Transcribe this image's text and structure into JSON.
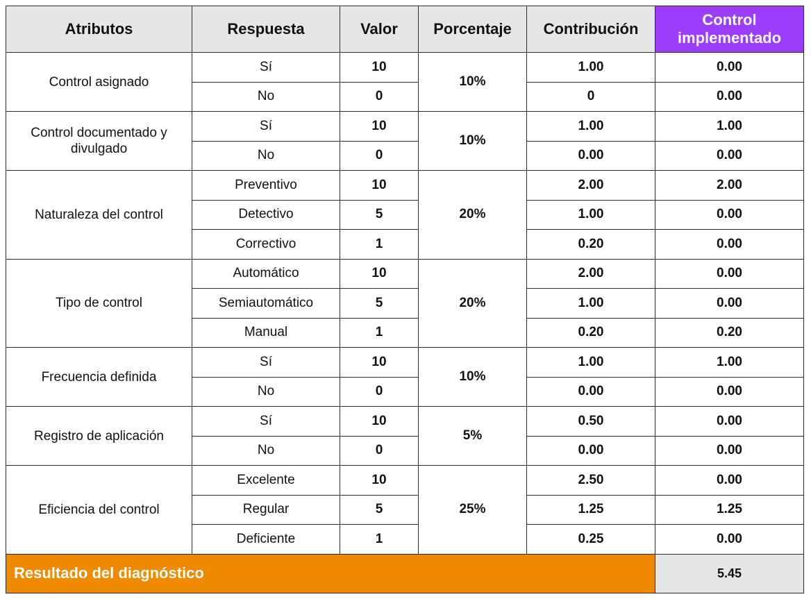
{
  "colors": {
    "header_bg": "#e6e6e6",
    "highlight_header_bg": "#9b3dfa",
    "result_label_bg": "#ef8a00",
    "result_value_bg": "#e6e6e6"
  },
  "headers": {
    "atributos": "Atributos",
    "respuesta": "Respuesta",
    "valor": "Valor",
    "porcentaje": "Porcentaje",
    "contribucion": "Contribución",
    "control_implementado": "Control implementado"
  },
  "groups": [
    {
      "attribute": "Control asignado",
      "percentage": "10%",
      "rows": [
        {
          "respuesta": "Sí",
          "valor": "10",
          "contribucion": "1.00",
          "control": "0.00"
        },
        {
          "respuesta": "No",
          "valor": "0",
          "contribucion": "0",
          "control": "0.00"
        }
      ]
    },
    {
      "attribute": "Control documentado y divulgado",
      "percentage": "10%",
      "rows": [
        {
          "respuesta": "Sí",
          "valor": "10",
          "contribucion": "1.00",
          "control": "1.00"
        },
        {
          "respuesta": "No",
          "valor": "0",
          "contribucion": "0.00",
          "control": "0.00"
        }
      ]
    },
    {
      "attribute": "Naturaleza del control",
      "percentage": "20%",
      "rows": [
        {
          "respuesta": "Preventivo",
          "valor": "10",
          "contribucion": "2.00",
          "control": "2.00"
        },
        {
          "respuesta": "Detectivo",
          "valor": "5",
          "contribucion": "1.00",
          "control": "0.00"
        },
        {
          "respuesta": "Correctivo",
          "valor": "1",
          "contribucion": "0.20",
          "control": "0.00"
        }
      ]
    },
    {
      "attribute": "Tipo de control",
      "percentage": "20%",
      "rows": [
        {
          "respuesta": "Automático",
          "valor": "10",
          "contribucion": "2.00",
          "control": "0.00"
        },
        {
          "respuesta": "Semiautomático",
          "valor": "5",
          "contribucion": "1.00",
          "control": "0.00"
        },
        {
          "respuesta": "Manual",
          "valor": "1",
          "contribucion": "0.20",
          "control": "0.20"
        }
      ]
    },
    {
      "attribute": "Frecuencia definida",
      "percentage": "10%",
      "rows": [
        {
          "respuesta": "Sí",
          "valor": "10",
          "contribucion": "1.00",
          "control": "1.00"
        },
        {
          "respuesta": "No",
          "valor": "0",
          "contribucion": "0.00",
          "control": "0.00"
        }
      ]
    },
    {
      "attribute": "Registro de aplicación",
      "percentage": "5%",
      "rows": [
        {
          "respuesta": "Sí",
          "valor": "10",
          "contribucion": "0.50",
          "control": "0.00"
        },
        {
          "respuesta": "No",
          "valor": "0",
          "contribucion": "0.00",
          "control": "0.00"
        }
      ]
    },
    {
      "attribute": "Eficiencia del control",
      "percentage": "25%",
      "rows": [
        {
          "respuesta": "Excelente",
          "valor": "10",
          "contribucion": "2.50",
          "control": "0.00"
        },
        {
          "respuesta": "Regular",
          "valor": "5",
          "contribucion": "1.25",
          "control": "1.25"
        },
        {
          "respuesta": "Deficiente",
          "valor": "1",
          "contribucion": "0.25",
          "control": "0.00"
        }
      ]
    }
  ],
  "result": {
    "label": "Resultado del diagnóstico",
    "value": "5.45"
  }
}
